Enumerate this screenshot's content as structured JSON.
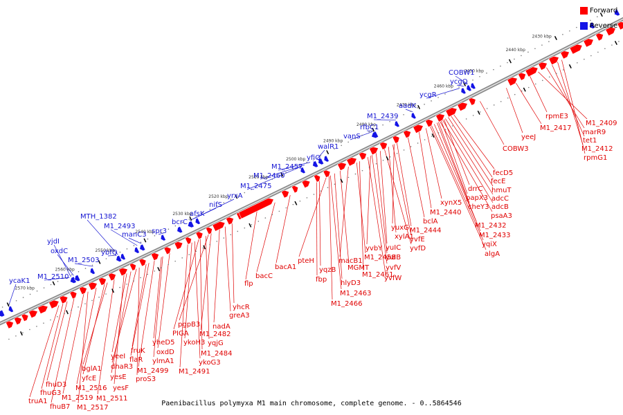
{
  "legend": {
    "forward_label": "Forward",
    "reverse_label": "Reverse",
    "forward_color": "#ff0000",
    "reverse_color": "#1414e6"
  },
  "caption": "Paenibacillus polymyxa M1 main chromosome, complete genome. - 0..5864546",
  "scale_labels": [
    "2430 kbp",
    "2440 kbp",
    "2450 kbp",
    "2460 kbp",
    "2470 kbp",
    "2480 kbp",
    "2490 kbp",
    "2500 kbp",
    "2510 kbp",
    "2520 kbp",
    "2530 kbp",
    "2540 kbp",
    "2550 kbp",
    "2560 kbp",
    "2570 kbp"
  ],
  "forward_genes": [
    "rpmE3",
    "M1_2409",
    "marR9",
    "tet1",
    "M1_2412",
    "rpmG1",
    "M1_2417",
    "yeeJ",
    "COBW3",
    "fecD5",
    "fecE",
    "hmuT",
    "drrC",
    "adcC",
    "papX3",
    "cheY3",
    "adcB",
    "psaA3",
    "xynX5",
    "M1_2432",
    "M1_2433",
    "yqiX",
    "algA",
    "bclA",
    "M1_2440",
    "yuxG",
    "M1_2444",
    "xylA1",
    "yvfE",
    "yvbY",
    "yuIC",
    "yvfD",
    "M1_2458",
    "yuIB",
    "yvfV",
    "yvfW",
    "macB1",
    "MGMT",
    "M1_2461",
    "pteH",
    "yqzB",
    "fbp",
    "hlyD3",
    "M1_2463",
    "M1_2466",
    "bacA1",
    "bacC",
    "flp",
    "yhcR",
    "greA3",
    "nadA",
    "M1_2482",
    "pgpB3",
    "yqjG",
    "PIGA",
    "ykoH3",
    "M1_2484",
    "ykoG3",
    "M1_2491",
    "yheD5",
    "oxdD",
    "ylmA1",
    "fruK",
    "flaR",
    "M1_2499",
    "yeeI",
    "dhaR3",
    "yesE",
    "proS3",
    "yesF",
    "bglA1",
    "yfcE",
    "M1_2516",
    "M1_2511",
    "M1_2519",
    "fhuD3",
    "fhuG3",
    "M1_2517",
    "truA1",
    "fhuB7"
  ],
  "reverse_genes": [
    "COBW1",
    "ycgQ",
    "ycgR",
    "aadK",
    "M1_2439",
    "rfbC1",
    "vanS",
    "walR1",
    "yfiQ",
    "M1_2457",
    "M1_2460",
    "M1_2475",
    "yrxA",
    "nifS",
    "afsK",
    "bcrC",
    "spr3",
    "manC3",
    "M1_2493",
    "MTH_1382",
    "ybfQ",
    "M1_2503",
    "oxdC",
    "yjdI",
    "M1_2510",
    "ycaK1"
  ]
}
